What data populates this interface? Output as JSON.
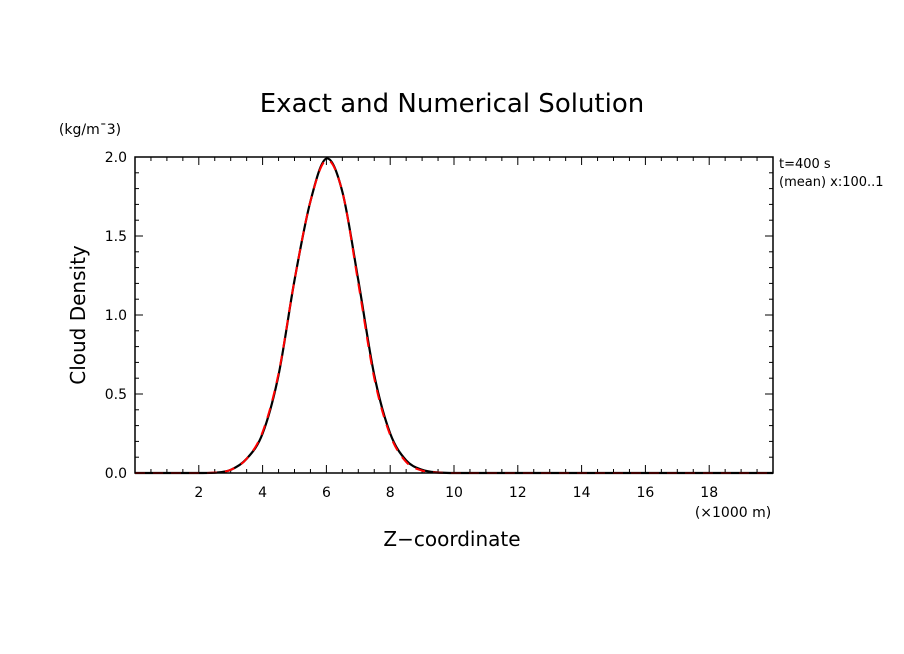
{
  "chart_data": {
    "type": "line",
    "title": "Exact and Numerical Solution",
    "xlabel": "Z−coordinate",
    "xunit": "(×1000 m)",
    "ylabel": "Cloud Density",
    "yunit": "(kg/m¯3)",
    "annotation_lines": [
      "t=400 s",
      "(mean) x:100..1"
    ],
    "xlim": [
      0,
      20
    ],
    "ylim": [
      0,
      2.0
    ],
    "xticks": [
      2,
      4,
      6,
      8,
      10,
      12,
      14,
      16,
      18
    ],
    "xtick_labels": [
      "2",
      "4",
      "6",
      "8",
      "10",
      "12",
      "14",
      "16",
      "18"
    ],
    "yticks": [
      0.0,
      0.5,
      1.0,
      1.5,
      2.0
    ],
    "ytick_labels": [
      "0.0",
      "0.5",
      "1.0",
      "1.5",
      "2.0"
    ],
    "grid": false,
    "series": [
      {
        "style": "solid",
        "color": "#000000",
        "x": [
          0,
          1,
          2,
          2.5,
          3,
          3.5,
          4,
          4.5,
          5,
          5.5,
          6,
          6.5,
          7,
          7.5,
          8,
          8.5,
          9,
          9.5,
          10,
          11,
          12,
          14,
          16,
          18,
          20
        ],
        "y": [
          0,
          0,
          0,
          0.002,
          0.02,
          0.09,
          0.25,
          0.62,
          1.22,
          1.72,
          1.99,
          1.78,
          1.22,
          0.62,
          0.25,
          0.08,
          0.02,
          0.003,
          0,
          0,
          0,
          0,
          0,
          0,
          0
        ]
      },
      {
        "style": "dashed",
        "color": "#ff0000",
        "x": [
          0,
          1,
          2,
          2.5,
          3,
          3.5,
          4,
          4.5,
          5,
          5.5,
          6,
          6.5,
          7,
          7.5,
          8,
          8.5,
          9,
          9.5,
          10,
          11,
          12,
          14,
          16,
          18,
          20
        ],
        "y": [
          0,
          0,
          0,
          0.002,
          0.02,
          0.09,
          0.26,
          0.63,
          1.22,
          1.72,
          1.98,
          1.78,
          1.2,
          0.6,
          0.24,
          0.07,
          0.015,
          0.002,
          0,
          0,
          0,
          0,
          0,
          0,
          0
        ]
      }
    ],
    "colors": {
      "axes": "#000000",
      "exact": "#000000",
      "numerical": "#ff0000"
    }
  }
}
